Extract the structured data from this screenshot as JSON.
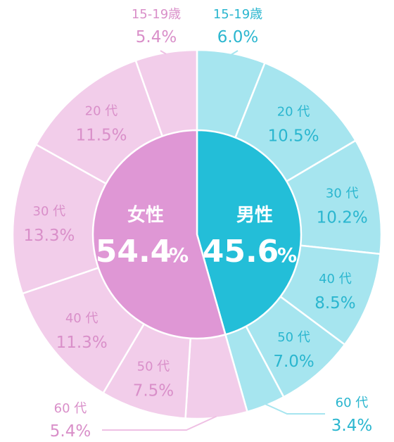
{
  "chart_data": {
    "type": "pie",
    "inner": [
      {
        "name": "女性",
        "value": 54.4,
        "label": "54.4",
        "unit": "%",
        "color": "#df97d5"
      },
      {
        "name": "男性",
        "value": 45.6,
        "label": "45.6",
        "unit": "%",
        "color": "#23bed8"
      }
    ],
    "outer": [
      {
        "group": "男性",
        "category": "15-19歳",
        "value": 6.0,
        "label": "6.0%",
        "color": "#a6e5ef"
      },
      {
        "group": "男性",
        "category": "20 代",
        "value": 10.5,
        "label": "10.5%",
        "color": "#a6e5ef"
      },
      {
        "group": "男性",
        "category": "30 代",
        "value": 10.2,
        "label": "10.2%",
        "color": "#a6e5ef"
      },
      {
        "group": "男性",
        "category": "40 代",
        "value": 8.5,
        "label": "8.5%",
        "color": "#a6e5ef"
      },
      {
        "group": "男性",
        "category": "50 代",
        "value": 7.0,
        "label": "7.0%",
        "color": "#a6e5ef"
      },
      {
        "group": "男性",
        "category": "60 代",
        "value": 3.4,
        "label": "3.4%",
        "color": "#a6e5ef"
      },
      {
        "group": "女性",
        "category": "60 代",
        "value": 5.4,
        "label": "5.4%",
        "color": "#f2cdea"
      },
      {
        "group": "女性",
        "category": "50 代",
        "value": 7.5,
        "label": "7.5%",
        "color": "#f2cdea"
      },
      {
        "group": "女性",
        "category": "40 代",
        "value": 11.3,
        "label": "11.3%",
        "color": "#f2cdea"
      },
      {
        "group": "女性",
        "category": "30 代",
        "value": 13.3,
        "label": "13.3%",
        "color": "#f2cdea"
      },
      {
        "group": "女性",
        "category": "20 代",
        "value": 11.5,
        "label": "11.5%",
        "color": "#f2cdea"
      },
      {
        "group": "女性",
        "category": "15-19歳",
        "value": 5.4,
        "label": "5.4%",
        "color": "#f2cdea"
      }
    ],
    "label_colors": {
      "女性": "#d98fc9",
      "男性": "#2ab6cf"
    },
    "separator_color": "#ffffff",
    "leader_line_colors": {
      "女性": "#efc0e4",
      "男性": "#a6e5ef"
    }
  }
}
